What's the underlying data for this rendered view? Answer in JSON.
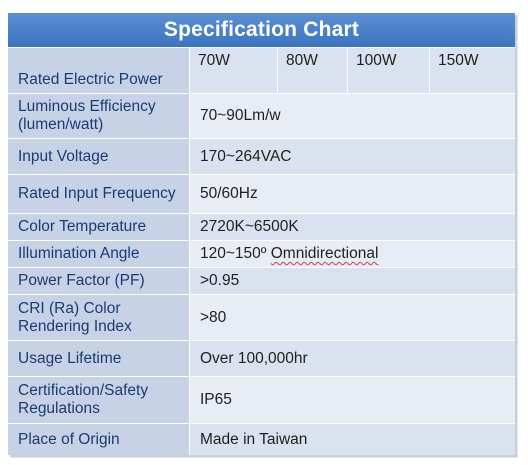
{
  "title": "Specification Chart",
  "rows": {
    "power": {
      "label": "Rated Electric Power",
      "values": [
        "70W",
        "80W",
        "100W",
        "150W"
      ]
    },
    "efficiency": {
      "label_line1": "Luminous Efficiency",
      "label_line2": "(lumen/watt)",
      "value": "70~90Lm/w"
    },
    "voltage": {
      "label": "Input Voltage",
      "value": "170~264VAC"
    },
    "frequency": {
      "label": "Rated Input Frequency",
      "value": "50/60Hz"
    },
    "color_temp": {
      "label": "Color Temperature",
      "value": "2720K~6500K"
    },
    "angle": {
      "label": "Illumination Angle",
      "value_prefix": "120~150º ",
      "value_word": "Omnidirectional"
    },
    "pf": {
      "label": "Power Factor (PF)",
      "value": ">0.95"
    },
    "cri": {
      "label_line1": "CRI (Ra) Color",
      "label_line2": "Rendering Index",
      "value": ">80"
    },
    "lifetime": {
      "label": "Usage Lifetime",
      "value": "Over 100,000hr"
    },
    "certification": {
      "label_line1": "Certification/Safety",
      "label_line2": "Regulations",
      "value": "IP65"
    },
    "origin": {
      "label": "Place of Origin",
      "value": "Made in Taiwan"
    }
  },
  "colors": {
    "header": "#3b74c1",
    "label_bg": "#c7d2e6",
    "value_bg": "#dbe2ef",
    "label_text": "#1a3b72"
  }
}
